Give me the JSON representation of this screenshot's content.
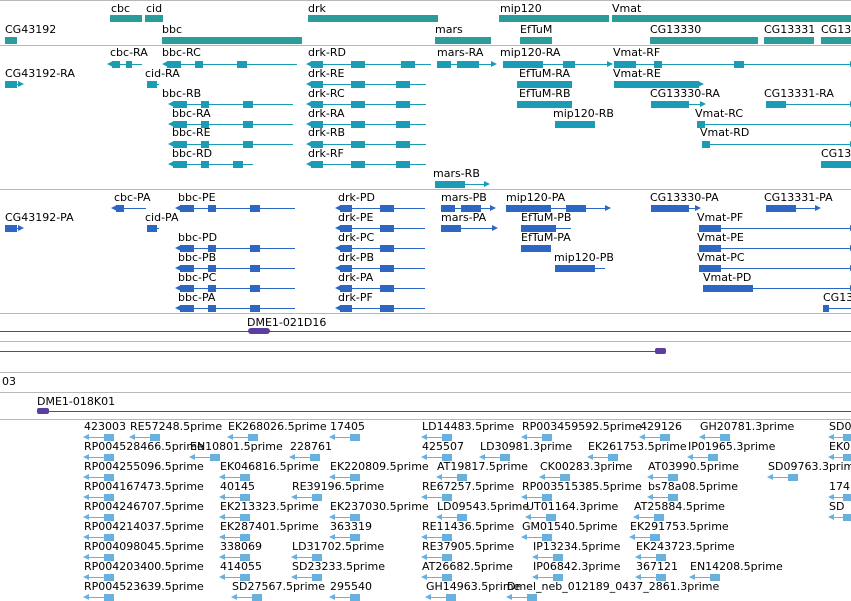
{
  "colors": {
    "gene": "#2a9d9b",
    "transcript": "#1a9cb7",
    "protein": "#2d67c4",
    "clone": "#5b3f9e",
    "est": "#6ab0de"
  },
  "genes": {
    "cbc": "cbc",
    "cid": "cid",
    "bbc": "bbc",
    "drk": "drk",
    "mip120": "mip120",
    "Vmat": "Vmat",
    "CG43192": "CG43192",
    "mars": "mars",
    "EfTuM": "EfTuM",
    "CG13330": "CG13330",
    "CG13331": "CG13331",
    "CG13": "CG13"
  },
  "transcripts": {
    "cbc_RA": "cbc-RA",
    "bbc_RC": "bbc-RC",
    "drk_RD": "drk-RD",
    "mars_RA": "mars-RA",
    "mip120_RA": "mip120-RA",
    "Vmat_RF": "Vmat-RF",
    "CG43192_RA": "CG43192-RA",
    "cid_RA": "cid-RA",
    "drk_RE": "drk-RE",
    "EfTuM_RA": "EfTuM-RA",
    "Vmat_RE": "Vmat-RE",
    "bbc_RB": "bbc-RB",
    "drk_RC": "drk-RC",
    "EfTuM_RB": "EfTuM-RB",
    "CG13330_RA": "CG13330-RA",
    "CG13331_RA": "CG13331-RA",
    "bbc_RA": "bbc-RA",
    "drk_RA": "drk-RA",
    "mip120_RB": "mip120-RB",
    "Vmat_RC": "Vmat-RC",
    "bbc_RE": "bbc-RE",
    "drk_RB": "drk-RB",
    "Vmat_RD": "Vmat-RD",
    "bbc_RD": "bbc-RD",
    "drk_RF": "drk-RF",
    "CG13": "CG13",
    "mars_RB": "mars-RB"
  },
  "proteins": {
    "cbc_PA": "cbc-PA",
    "bbc_PE": "bbc-PE",
    "drk_PD": "drk-PD",
    "mars_PB": "mars-PB",
    "mip120_PA": "mip120-PA",
    "CG13330_PA": "CG13330-PA",
    "CG13331_PA": "CG13331-PA",
    "CG43192_PA": "CG43192-PA",
    "cid_PA": "cid-PA",
    "drk_PE": "drk-PE",
    "mars_PA": "mars-PA",
    "EfTuM_PB": "EfTuM-PB",
    "Vmat_PF": "Vmat-PF",
    "bbc_PD": "bbc-PD",
    "drk_PC": "drk-PC",
    "EfTuM_PA": "EfTuM-PA",
    "Vmat_PE": "Vmat-PE",
    "bbc_PB": "bbc-PB",
    "drk_PB": "drk-PB",
    "mip120_PB": "mip120-PB",
    "Vmat_PC": "Vmat-PC",
    "bbc_PC": "bbc-PC",
    "drk_PA": "drk-PA",
    "Vmat_PD": "Vmat-PD",
    "bbc_PA": "bbc-PA",
    "drk_PF": "drk-PF",
    "CG13": "CG13"
  },
  "clones": {
    "c1": "DME1-021D16",
    "c3": "03",
    "c4": "DME1-018K01"
  },
  "est_rows": [
    [
      "423003",
      "RE57248.5prime",
      "EK268026.5prime",
      "17405",
      "LD14483.5prime",
      "RP003459592.5prime",
      "429126",
      "GH20781.3prime",
      "SD0"
    ],
    [
      "RP004528466.5prime",
      "EN10801.5prime",
      "228761",
      "425507",
      "LD30981.3prime",
      "EK261753.5prime",
      "IP01965.3prime",
      "EK0"
    ],
    [
      "RP004255096.5prime",
      "EK046816.5prime",
      "EK220809.5prime",
      "AT19817.5prime",
      "CK00283.3prime",
      "AT03990.5prime",
      "SD09763.3prime"
    ],
    [
      "RP004167473.5prime",
      "40145",
      "RE39196.5prime",
      "RE67257.5prime",
      "RP003515385.5prime",
      "bs78a08.5prime",
      "174"
    ],
    [
      "RP004246707.5prime",
      "EK213323.5prime",
      "EK237030.5prime",
      "LD09543.5prime",
      "UT01164.3prime",
      "AT25884.5prime",
      "SD"
    ],
    [
      "RP004214037.5prime",
      "EK287401.5prime",
      "363319",
      "RE11436.5prime",
      "GM01540.5prime",
      "EK291753.5prime"
    ],
    [
      "RP004098045.5prime",
      "338069",
      "LD31702.5prime",
      "RE37905.5prime",
      "IP13234.5prime",
      "EK243723.5prime"
    ],
    [
      "RP004203400.5prime",
      "414055",
      "SD23233.5prime",
      "AT26682.5prime",
      "IP06842.3prime",
      "367121",
      "EN14208.5prime"
    ],
    [
      "RP004523639.5prime",
      "SD27567.5prime",
      "295540",
      "GH14963.5prime",
      "Dmel_neb_012189_0437_2861.3prime"
    ]
  ]
}
